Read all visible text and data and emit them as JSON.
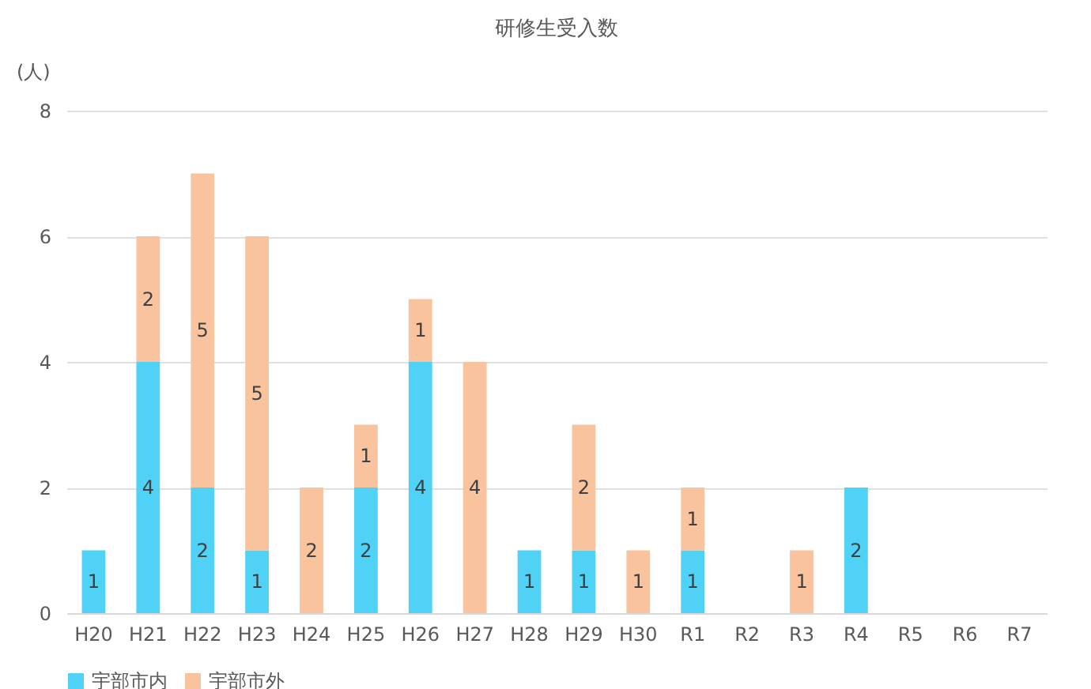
{
  "chart_data": {
    "type": "bar",
    "title": "研修生受入数",
    "ylabel": "(人)",
    "stacked": true,
    "data_labels": true,
    "grid": "y",
    "legend": "bottom",
    "ylim": [
      0,
      8
    ],
    "yticks": [
      0,
      2,
      4,
      6,
      8
    ],
    "categories": [
      "H20",
      "H21",
      "H22",
      "H23",
      "H24",
      "H25",
      "H26",
      "H27",
      "H28",
      "H29",
      "H30",
      "R1",
      "R2",
      "R3",
      "R4",
      "R5",
      "R6",
      "R7"
    ],
    "series": [
      {
        "name": "宇部市内",
        "color": "#4fd2f6",
        "values": [
          1,
          4,
          2,
          1,
          null,
          2,
          4,
          null,
          1,
          1,
          null,
          1,
          null,
          null,
          2,
          null,
          null,
          null
        ]
      },
      {
        "name": "宇部市外",
        "color": "#f8c39d",
        "values": [
          null,
          2,
          5,
          5,
          2,
          1,
          1,
          4,
          null,
          2,
          1,
          1,
          null,
          1,
          null,
          null,
          null,
          null
        ]
      }
    ]
  }
}
